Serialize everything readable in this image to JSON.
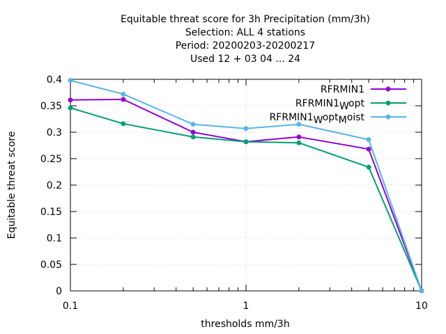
{
  "chart_data": {
    "type": "line",
    "title_lines": [
      "Equitable threat score  for 3h Precipitation (mm/3h)",
      "Selection: ALL      4 stations",
      "Period: 20200203-20200217",
      "Used  12 + 03 04 ... 24"
    ],
    "xlabel": "thresholds mm/3h",
    "ylabel": "Equitable threat score",
    "x_scale": "log",
    "xlim": [
      0.1,
      10
    ],
    "ylim": [
      0,
      0.4
    ],
    "x_tick_labels": [
      "0.1",
      "1",
      "10"
    ],
    "y_tick_labels": [
      "0",
      "0.05",
      "0.1",
      "0.15",
      "0.2",
      "0.25",
      "0.3",
      "0.35",
      "0.4"
    ],
    "grid": true,
    "legend_position": "top-right",
    "x": [
      0.1,
      0.2,
      0.5,
      1,
      2,
      5,
      10
    ],
    "series": [
      {
        "legend_main": "RFRMIN1",
        "legend_sub": "",
        "legend_tail": "",
        "legend_sub2": "",
        "legend_tail2": "",
        "color": "#9400d3",
        "values": [
          0.361,
          0.362,
          0.3,
          0.282,
          0.291,
          0.268,
          0.0
        ]
      },
      {
        "legend_main": "RFRMIN1",
        "legend_sub": "W",
        "legend_tail": "opt",
        "legend_sub2": "",
        "legend_tail2": "",
        "color": "#009e73",
        "values": [
          0.346,
          0.316,
          0.291,
          0.282,
          0.28,
          0.234,
          0.0
        ]
      },
      {
        "legend_main": "RFRMIN1",
        "legend_sub": "W",
        "legend_tail": "opt",
        "legend_sub2": "M",
        "legend_tail2": "oist",
        "color": "#56b4e9",
        "values": [
          0.398,
          0.372,
          0.315,
          0.307,
          0.315,
          0.286,
          0.0
        ]
      }
    ]
  }
}
